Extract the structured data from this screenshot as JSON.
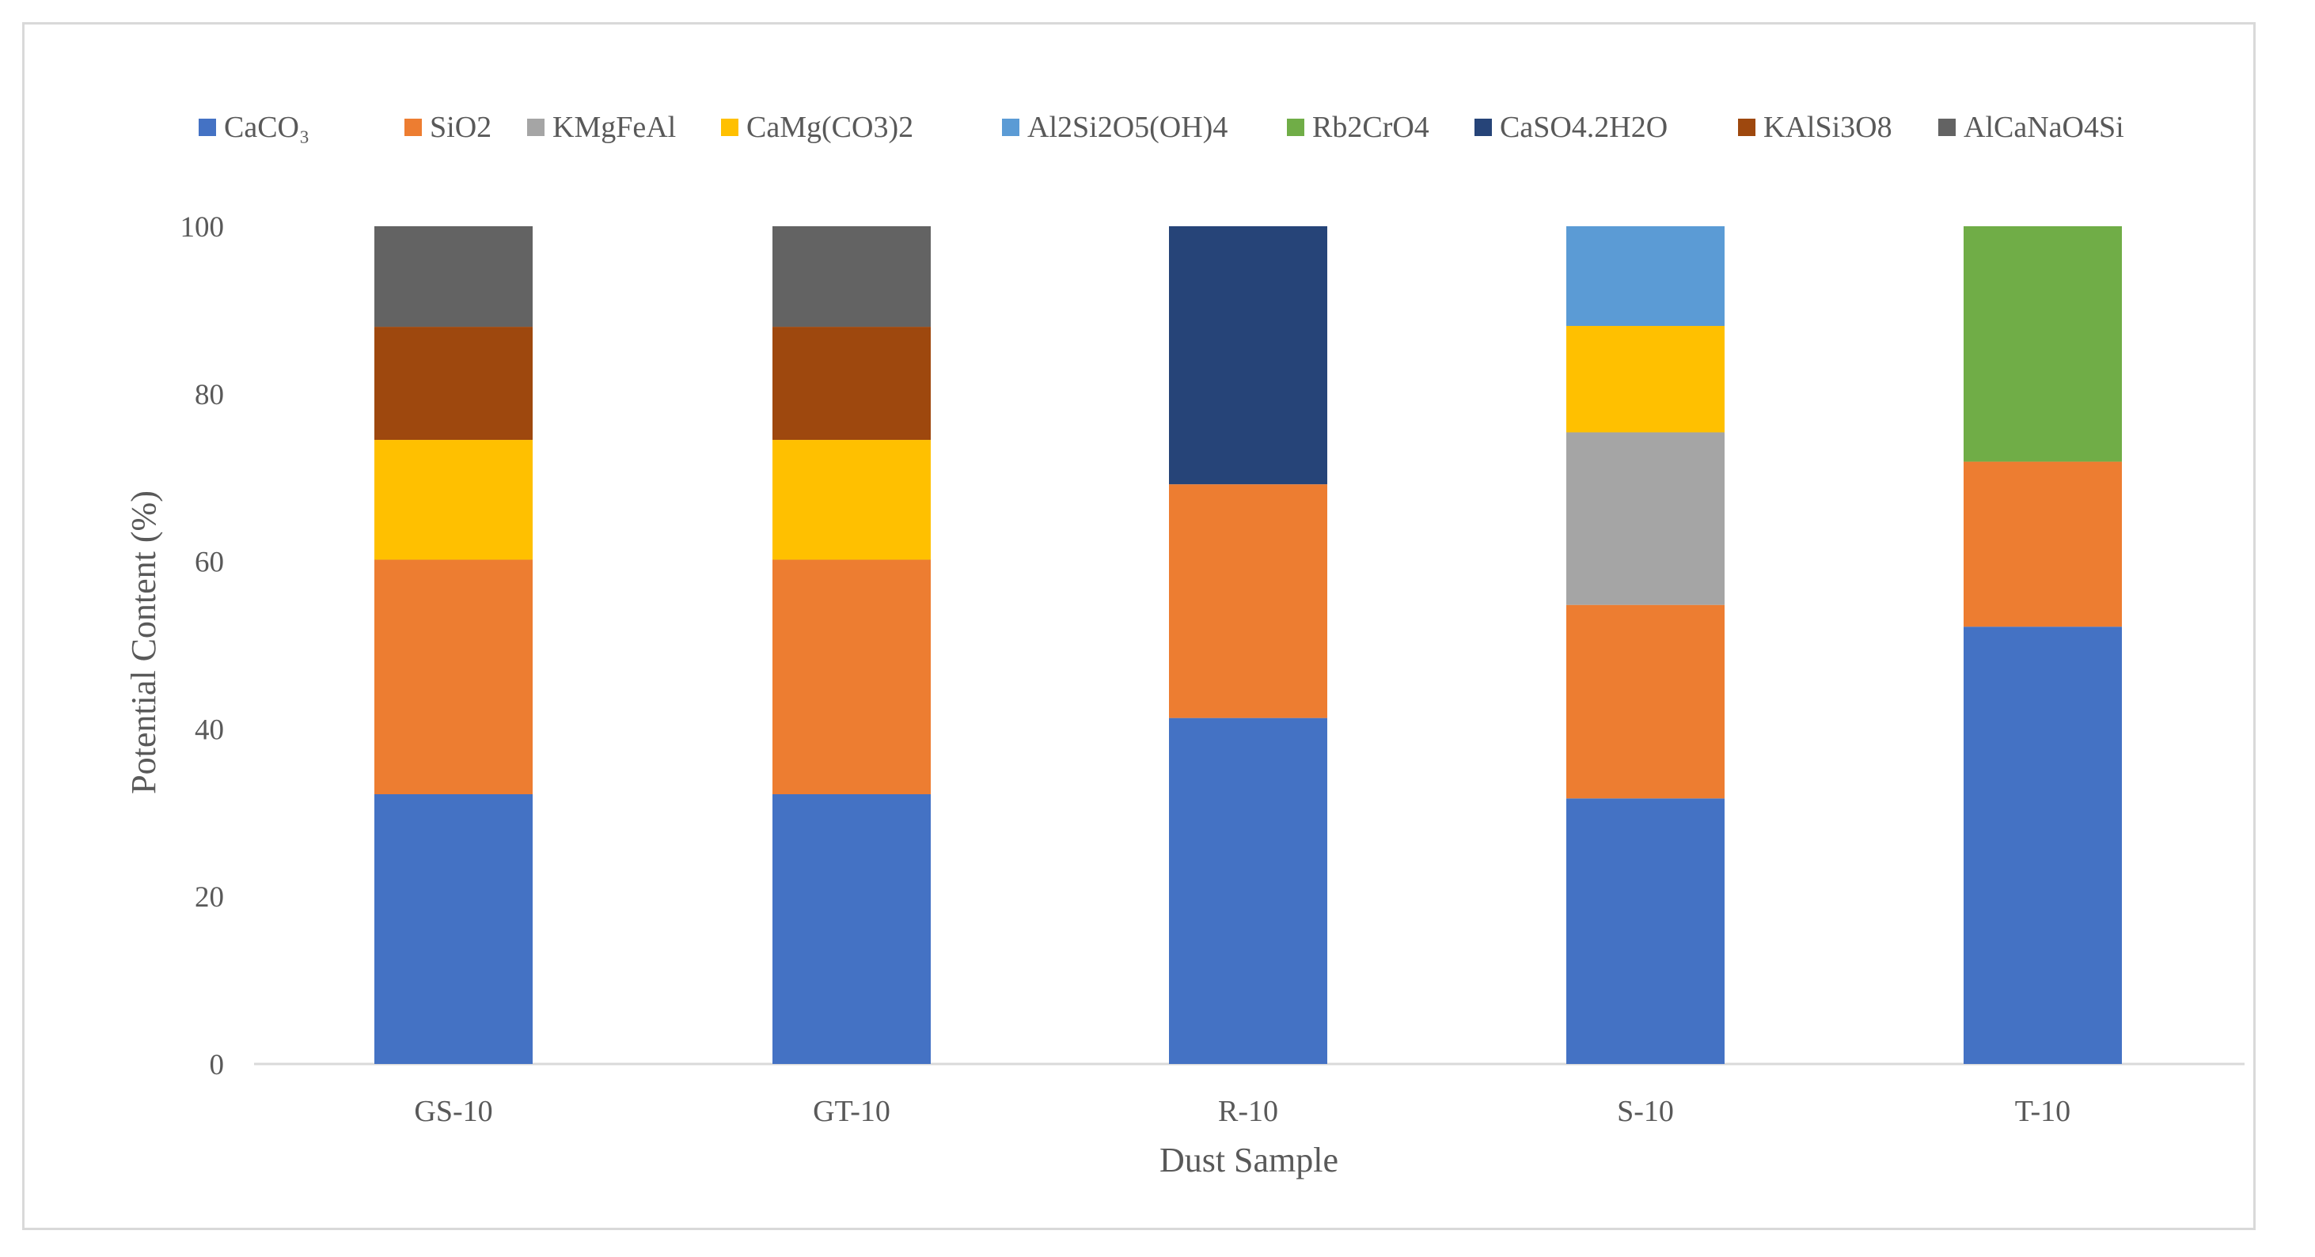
{
  "chart_data": {
    "type": "bar",
    "stacked": true,
    "title": "",
    "xlabel": "Dust Sample",
    "ylabel": "Potential Content (%)",
    "ylim": [
      0,
      100
    ],
    "yticks": [
      0,
      20,
      40,
      60,
      80,
      100
    ],
    "grid": false,
    "legend_position": "top",
    "categories": [
      "GS-10",
      "GT-10",
      "R-10",
      "S-10",
      "T-10"
    ],
    "series": [
      {
        "name": "CaCO₃",
        "color": "#4472c4",
        "values": [
          32.2,
          32.2,
          41.3,
          31.7,
          52.2
        ]
      },
      {
        "name": "SiO2",
        "color": "#ed7d31",
        "values": [
          28.0,
          28.0,
          27.9,
          23.1,
          19.7
        ]
      },
      {
        "name": "KMgFeAl",
        "color": "#a5a5a5",
        "values": [
          0,
          0,
          0,
          20.6,
          0
        ]
      },
      {
        "name": "CaMg(CO3)2",
        "color": "#ffc000",
        "values": [
          14.3,
          14.3,
          0,
          12.7,
          0
        ]
      },
      {
        "name": "Al2Si2O5(OH)4",
        "color": "#5b9bd5",
        "values": [
          0,
          0,
          0,
          11.9,
          0
        ]
      },
      {
        "name": "Rb2CrO4",
        "color": "#70ad47",
        "values": [
          0,
          0,
          0,
          0,
          28.1
        ]
      },
      {
        "name": "CaSO4.2H2O",
        "color": "#264478",
        "values": [
          0,
          0,
          30.8,
          0,
          0
        ]
      },
      {
        "name": "KAlSi3O8",
        "color": "#9e480e",
        "values": [
          13.5,
          13.5,
          0,
          0,
          0
        ]
      },
      {
        "name": "AlCaNaO4Si",
        "color": "#636363",
        "values": [
          12.0,
          12.0,
          0,
          0,
          0
        ]
      }
    ]
  }
}
